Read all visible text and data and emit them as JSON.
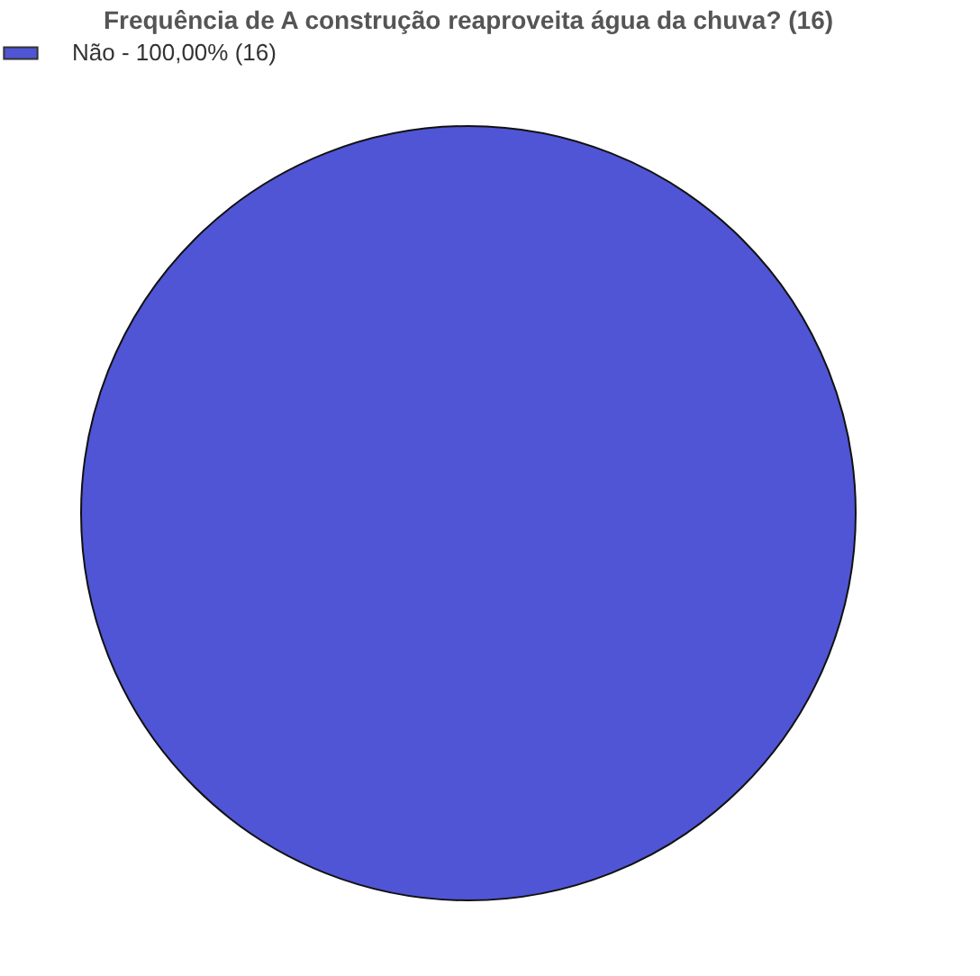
{
  "chart_data": {
    "type": "pie",
    "title": "Frequência de A construção reaproveita água da chuva? (16)",
    "categories": [
      "Não - 100,00% (16)"
    ],
    "values": [
      100
    ],
    "colors": [
      "#5055d5"
    ],
    "legend": "top"
  }
}
